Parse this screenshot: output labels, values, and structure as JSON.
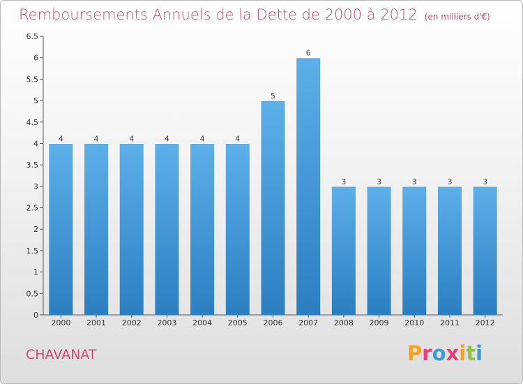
{
  "title": "Remboursements Annuels de la Dette de 2000 à 2012",
  "unit": "(en milliers d'€)",
  "place": "CHAVANAT",
  "logo": {
    "letters": [
      "P",
      "r",
      "o",
      "x",
      "i",
      "t",
      "i"
    ],
    "colors": [
      "#f7a21b",
      "#e8417a",
      "#3c9ad6",
      "#e8417a",
      "#f7a21b",
      "#8cc63f",
      "#3c9ad6"
    ]
  },
  "colors": {
    "bar_top": "#5dafe8",
    "bar_bottom": "#2b7fc1",
    "title": "#cc4a6e"
  },
  "chart_data": {
    "type": "bar",
    "title": "Remboursements Annuels de la Dette de 2000 à 2012",
    "ylabel": "(en milliers d'€)",
    "categories": [
      "2000",
      "2001",
      "2002",
      "2003",
      "2004",
      "2005",
      "2006",
      "2007",
      "2008",
      "2009",
      "2010",
      "2011",
      "2012"
    ],
    "values": [
      4,
      4,
      4,
      4,
      4,
      4,
      5,
      6,
      3,
      3,
      3,
      3,
      3
    ],
    "ylim": [
      0,
      6.5
    ],
    "yticks": [
      "0",
      "0.5",
      "1",
      "1.5",
      "2",
      "2.5",
      "3",
      "3.5",
      "4",
      "4.5",
      "5",
      "5.5",
      "6",
      "6.5"
    ],
    "grid": false,
    "legend": "none"
  }
}
